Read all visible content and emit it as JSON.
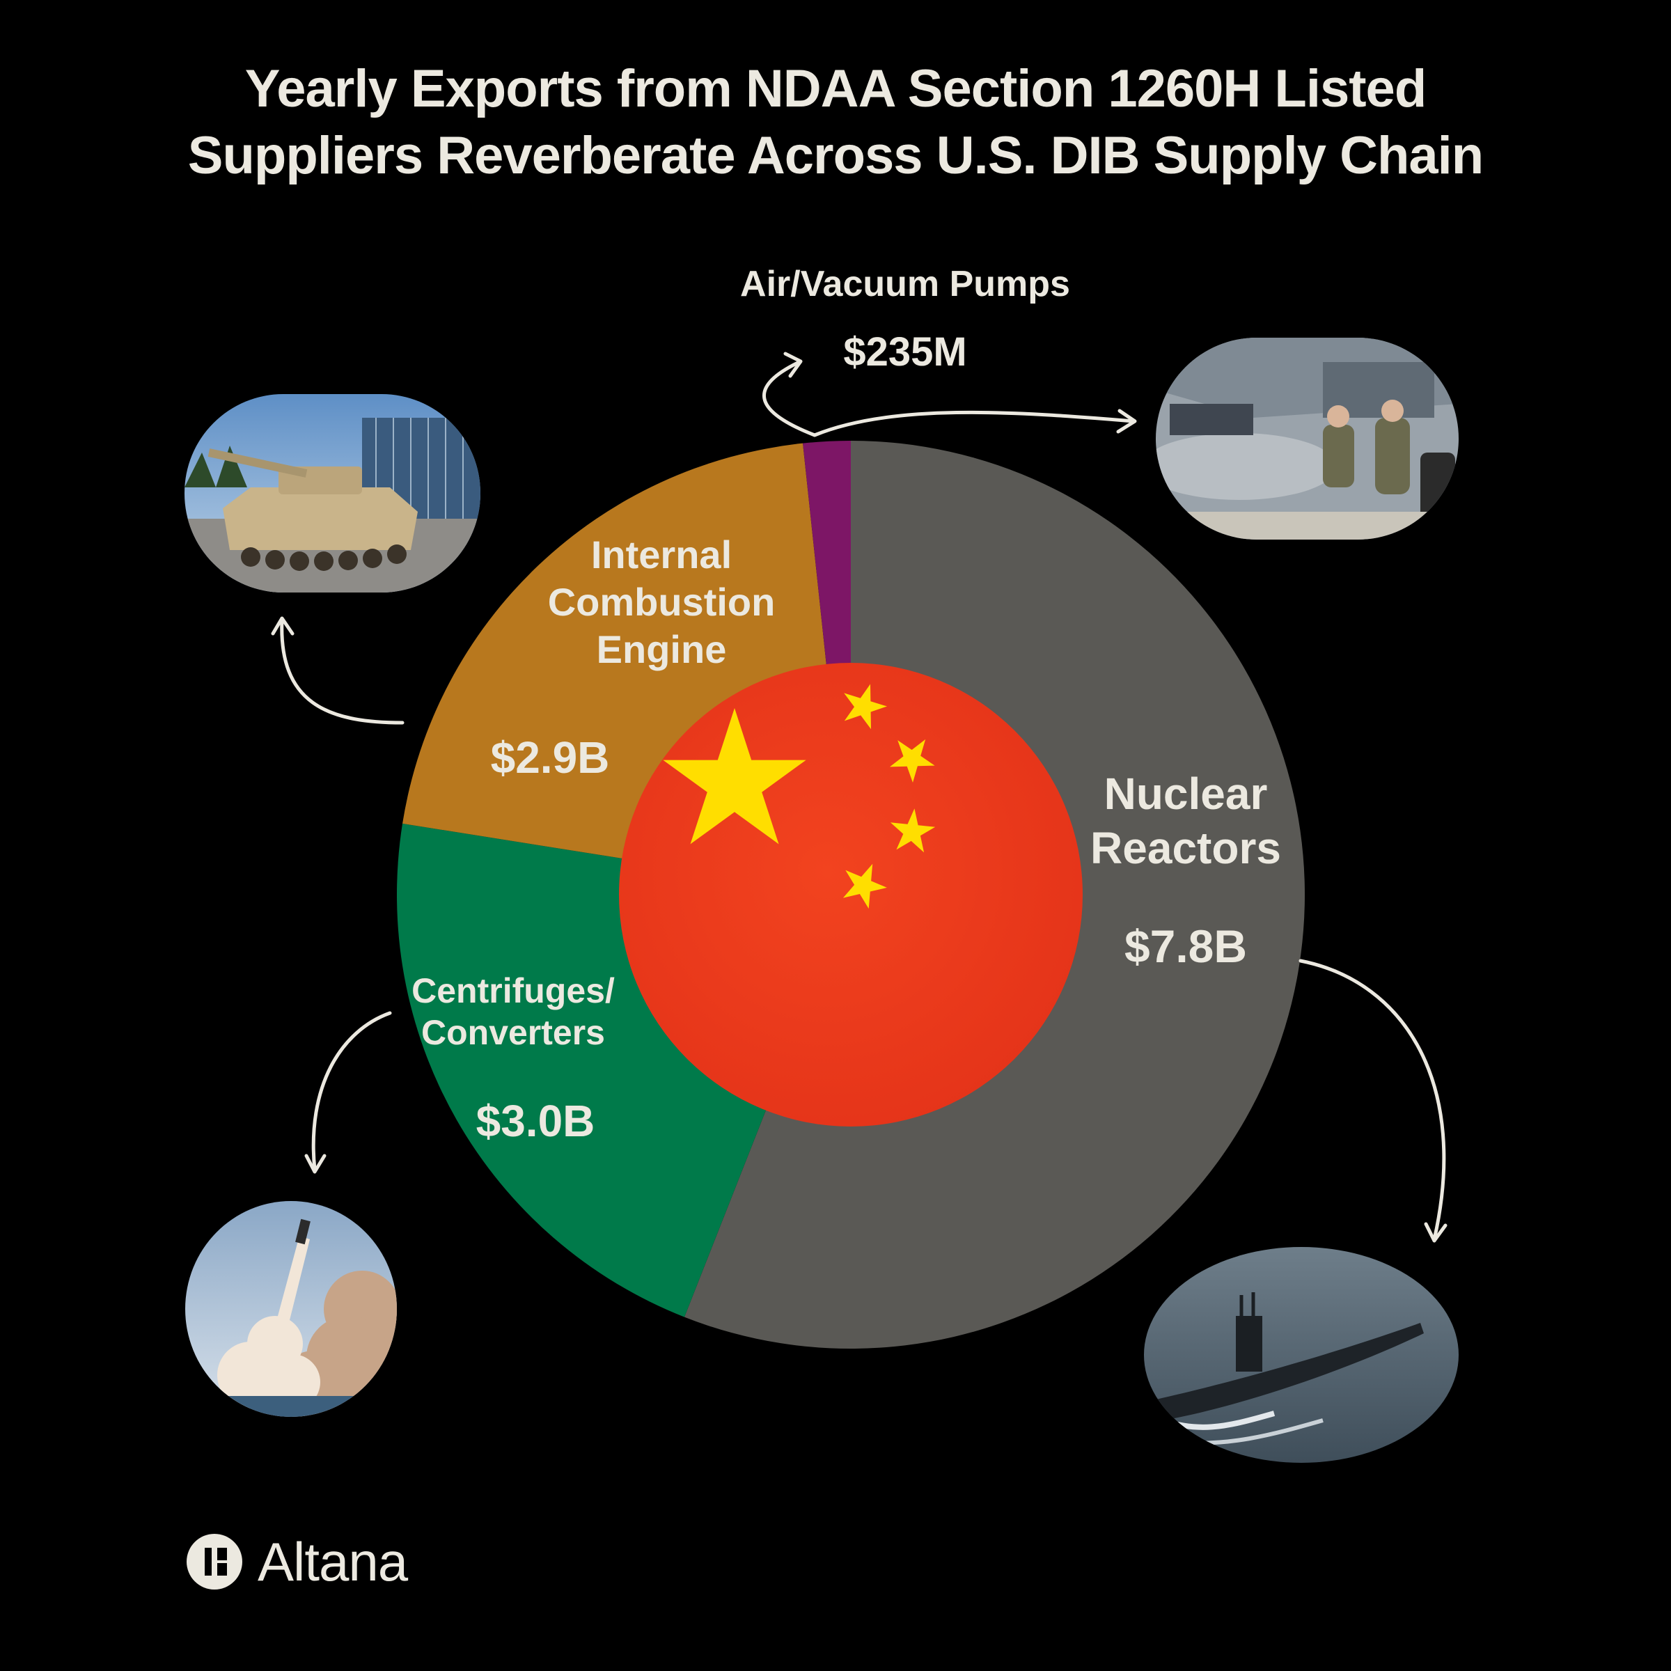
{
  "title": {
    "line1": "Yearly Exports from NDAA Section 1260H Listed",
    "line2": "Suppliers Reverberate Across U.S. DIB Supply Chain"
  },
  "chart_data": {
    "type": "pie",
    "start_angle_deg": 0,
    "direction": "clockwise",
    "slices": [
      {
        "category": "Nuclear Reactors",
        "value": 7.8,
        "display": "$7.8B",
        "color": "#5A5955"
      },
      {
        "category": "Centrifuges/ Converters",
        "value": 3.0,
        "display": "$3.0B",
        "color": "#007A4A"
      },
      {
        "category": "Internal Combustion Engine",
        "value": 2.9,
        "display": "$2.9B",
        "color": "#B8781E"
      },
      {
        "category": "Air/Vacuum Pumps",
        "value": 0.235,
        "display": "$235M",
        "color": "#7D1666"
      }
    ],
    "center_emblem": "china-flag",
    "linked_images": [
      "submarine",
      "missile-launch",
      "tank",
      "fighter-jet-maintenance"
    ]
  },
  "labels": {
    "nuclear_line1": "Nuclear",
    "nuclear_line2": "Reactors",
    "nuclear_value": "$7.8B",
    "centrifuge_line1": "Centrifuges/",
    "centrifuge_line2": "Converters",
    "centrifuge_value": "$3.0B",
    "engine_line1": "Internal",
    "engine_line2": "Combustion",
    "engine_line3": "Engine",
    "engine_value": "$2.9B",
    "pumps_name": "Air/Vacuum Pumps",
    "pumps_value": "$235M"
  },
  "logo": {
    "text": "Altana"
  },
  "colors": {
    "background": "#000000",
    "text": "#ECE9E0",
    "flag_red": "#EE3A1F",
    "flag_yellow": "#FFDE00"
  }
}
